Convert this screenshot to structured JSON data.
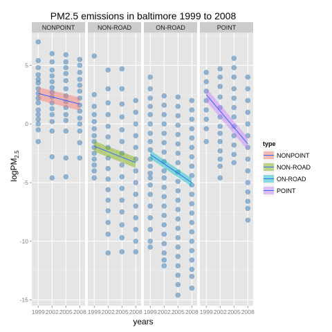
{
  "chart_data": {
    "type": "scatter",
    "title": "PM2.5 emissions in baltimore 1999 to 2008",
    "xlabel": "years",
    "ylabel_main": "logPM",
    "ylabel_sub": "2.5",
    "x_ticks": [
      "1999",
      "2002",
      "2005",
      "2008"
    ],
    "y_ticks": [
      5,
      0,
      -5,
      -10,
      -15
    ],
    "ylim": [
      -15.5,
      7.8
    ],
    "grid": true,
    "point_color": "#4682b4",
    "legend": {
      "title": "type",
      "position": "right",
      "entries": [
        {
          "label": "NONPOINT",
          "color": "#f8766d"
        },
        {
          "label": "NON-ROAD",
          "color": "#7cae00"
        },
        {
          "label": "ON-ROAD",
          "color": "#00bfc4"
        },
        {
          "label": "POINT",
          "color": "#c77cff"
        }
      ]
    },
    "panels": [
      {
        "name": "NONPOINT",
        "color": "#f8766d",
        "trend": {
          "start": 2.6,
          "end": 1.7,
          "band": 0.55
        },
        "points": {
          "1999": [
            7.0,
            5.4,
            4.8,
            4.2,
            3.8,
            3.5,
            3.0,
            2.6,
            2.2,
            1.8,
            1.2,
            0.8,
            0.4,
            0.0,
            -0.5,
            -1.5
          ],
          "2002": [
            6.0,
            5.3,
            4.6,
            4.1,
            3.6,
            3.1,
            2.7,
            2.3,
            1.8,
            1.3,
            0.8,
            0.2,
            -0.6,
            -2.8,
            -4.6
          ],
          "2005": [
            5.9,
            5.3,
            4.8,
            4.3,
            3.7,
            3.0,
            2.4,
            1.9,
            1.4,
            0.8,
            0.3,
            -0.6,
            -2.9,
            -4.5
          ],
          "2008": [
            5.5,
            5.0,
            4.4,
            3.8,
            3.3,
            2.8,
            2.2,
            1.6,
            1.1,
            0.5,
            0.0,
            -0.6,
            -1.6,
            -2.9
          ]
        }
      },
      {
        "name": "NON-ROAD",
        "color": "#7cae00",
        "trend": {
          "start": -1.9,
          "end": -3.3,
          "band": 0.45
        },
        "points": {
          "1999": [
            5.8,
            2.5,
            1.5,
            0.8,
            0.2,
            -0.4,
            -1.0,
            -1.5,
            -2.0,
            -2.5,
            -3.0,
            -3.5,
            -4.0,
            -4.6
          ],
          "2002": [
            4.6,
            3.0,
            1.8,
            0.8,
            -0.2,
            -1.1,
            -2.0,
            -2.9,
            -3.8,
            -4.7,
            -5.6,
            -6.5,
            -7.4,
            -8.4,
            -9.4,
            -11.0
          ],
          "2005": [
            4.7,
            3.0,
            1.7,
            0.6,
            -0.5,
            -1.5,
            -2.5,
            -3.5,
            -4.5,
            -5.5,
            -6.5,
            -7.5,
            -8.6,
            -9.7,
            -10.9
          ],
          "2008": [
            2.0,
            1.0,
            0.0,
            -1.0,
            -2.0,
            -3.0,
            -4.0,
            -5.0,
            -6.0,
            -7.0,
            -8.0,
            -9.0,
            -10.0,
            -10.9
          ]
        }
      },
      {
        "name": "ON-ROAD",
        "color": "#00bfc4",
        "trend": {
          "start": -2.6,
          "end": -5.0,
          "band": 0.35
        },
        "points": {
          "1999": [
            4.0,
            3.0,
            2.2,
            1.5,
            0.8,
            0.0,
            -0.8,
            -1.5,
            -2.2,
            -3.0,
            -3.6,
            -4.2,
            -4.6,
            -5.2,
            -6.0,
            -7.0,
            -8.0,
            -9.0,
            -10.0,
            -10.5
          ],
          "2002": [
            2.4,
            1.6,
            0.8,
            0.0,
            -0.8,
            -1.6,
            -2.4,
            -3.2,
            -4.0,
            -4.6,
            -5.4,
            -6.2,
            -7.0,
            -7.8,
            -8.6,
            -9.4,
            -10.2,
            -11.0,
            -11.6,
            -12.1
          ],
          "2005": [
            2.3,
            1.5,
            0.7,
            -0.1,
            -0.9,
            -1.7,
            -2.5,
            -3.3,
            -4.1,
            -4.9,
            -5.7,
            -6.5,
            -7.3,
            -8.1,
            -8.9,
            -9.7,
            -10.5,
            -11.3,
            -12.1,
            -12.9,
            -13.7,
            -14.6
          ],
          "2008": [
            2.0,
            1.2,
            0.4,
            -0.4,
            -1.2,
            -2.0,
            -2.8,
            -3.6,
            -4.4,
            -5.2,
            -6.0,
            -6.8,
            -7.6,
            -8.4,
            -9.2,
            -10.0,
            -10.8,
            -11.6,
            -12.4,
            -13.0,
            -14.0
          ]
        }
      },
      {
        "name": "POINT",
        "color": "#c77cff",
        "trend": {
          "start": 2.5,
          "end": -1.7,
          "band": 0.55
        },
        "points": {
          "1999": [
            4.4,
            3.6,
            2.8,
            2.0,
            1.2,
            0.4,
            -0.4,
            -1.5
          ],
          "2002": [
            4.7,
            4.0,
            3.2,
            2.3,
            1.4,
            0.6,
            -0.2,
            -0.8,
            -1.5,
            -2.3,
            -3.0,
            -3.6,
            -4.6
          ],
          "2005": [
            5.6,
            4.8,
            4.0,
            3.0,
            2.2,
            1.4,
            0.6,
            -0.2,
            -1.0,
            -1.8,
            -2.6,
            -3.3
          ],
          "2008": [
            4.0,
            3.0,
            2.0,
            1.0,
            0.0,
            -1.0,
            -2.0,
            -3.0,
            -4.0,
            -5.0,
            -5.8,
            -6.6,
            -7.2,
            -8.2
          ]
        }
      }
    ]
  }
}
